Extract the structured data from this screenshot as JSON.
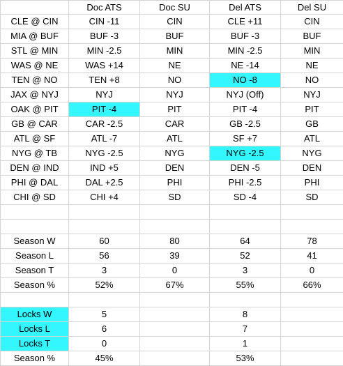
{
  "columns": [
    "",
    "Doc ATS",
    "Doc SU",
    "Del ATS",
    "Del SU"
  ],
  "highlight_color": "#33f6ff",
  "games": [
    {
      "matchup": "CLE @ CIN",
      "doc_ats": "CIN -11",
      "doc_su": "CIN",
      "del_ats": "CLE +11",
      "del_su": "CIN"
    },
    {
      "matchup": "MIA @ BUF",
      "doc_ats": "BUF -3",
      "doc_su": "BUF",
      "del_ats": "BUF -3",
      "del_su": "BUF"
    },
    {
      "matchup": "STL @ MIN",
      "doc_ats": "MIN -2.5",
      "doc_su": "MIN",
      "del_ats": "MIN -2.5",
      "del_su": "MIN"
    },
    {
      "matchup": "WAS @ NE",
      "doc_ats": "WAS +14",
      "doc_su": "NE",
      "del_ats": "NE -14",
      "del_su": "NE"
    },
    {
      "matchup": "TEN @ NO",
      "doc_ats": "TEN +8",
      "doc_su": "NO",
      "del_ats": "NO -8",
      "del_su": "NO"
    },
    {
      "matchup": "JAX @ NYJ",
      "doc_ats": "NYJ",
      "doc_su": "NYJ",
      "del_ats": "NYJ (Off)",
      "del_su": "NYJ"
    },
    {
      "matchup": "OAK @ PIT",
      "doc_ats": "PIT -4",
      "doc_su": "PIT",
      "del_ats": "PIT -4",
      "del_su": "PIT"
    },
    {
      "matchup": "GB @ CAR",
      "doc_ats": "CAR -2.5",
      "doc_su": "CAR",
      "del_ats": "GB -2.5",
      "del_su": "GB"
    },
    {
      "matchup": "ATL @ SF",
      "doc_ats": "ATL -7",
      "doc_su": "ATL",
      "del_ats": "SF +7",
      "del_su": "ATL"
    },
    {
      "matchup": "NYG @ TB",
      "doc_ats": "NYG -2.5",
      "doc_su": "NYG",
      "del_ats": "NYG -2.5",
      "del_su": "NYG"
    },
    {
      "matchup": "DEN @ IND",
      "doc_ats": "IND +5",
      "doc_su": "DEN",
      "del_ats": "DEN -5",
      "del_su": "DEN"
    },
    {
      "matchup": "PHI @ DAL",
      "doc_ats": "DAL +2.5",
      "doc_su": "PHI",
      "del_ats": "PHI -2.5",
      "del_su": "PHI"
    },
    {
      "matchup": "CHI @ SD",
      "doc_ats": "CHI +4",
      "doc_su": "SD",
      "del_ats": "SD -4",
      "del_su": "SD"
    }
  ],
  "season": [
    {
      "label": "Season W",
      "doc_ats": "60",
      "doc_su": "80",
      "del_ats": "64",
      "del_su": "78"
    },
    {
      "label": "Season L",
      "doc_ats": "56",
      "doc_su": "39",
      "del_ats": "52",
      "del_su": "41"
    },
    {
      "label": "Season T",
      "doc_ats": "3",
      "doc_su": "0",
      "del_ats": "3",
      "del_su": "0"
    },
    {
      "label": "Season %",
      "doc_ats": "52%",
      "doc_su": "67%",
      "del_ats": "55%",
      "del_su": "66%"
    }
  ],
  "locks": [
    {
      "label": "Locks W",
      "doc_ats": "5",
      "doc_su": "",
      "del_ats": "8",
      "del_su": ""
    },
    {
      "label": "Locks L",
      "doc_ats": "6",
      "doc_su": "",
      "del_ats": "7",
      "del_su": ""
    },
    {
      "label": "Locks T",
      "doc_ats": "0",
      "doc_su": "",
      "del_ats": "1",
      "del_su": ""
    },
    {
      "label": "Season %",
      "doc_ats": "45%",
      "doc_su": "",
      "del_ats": "53%",
      "del_su": ""
    }
  ]
}
